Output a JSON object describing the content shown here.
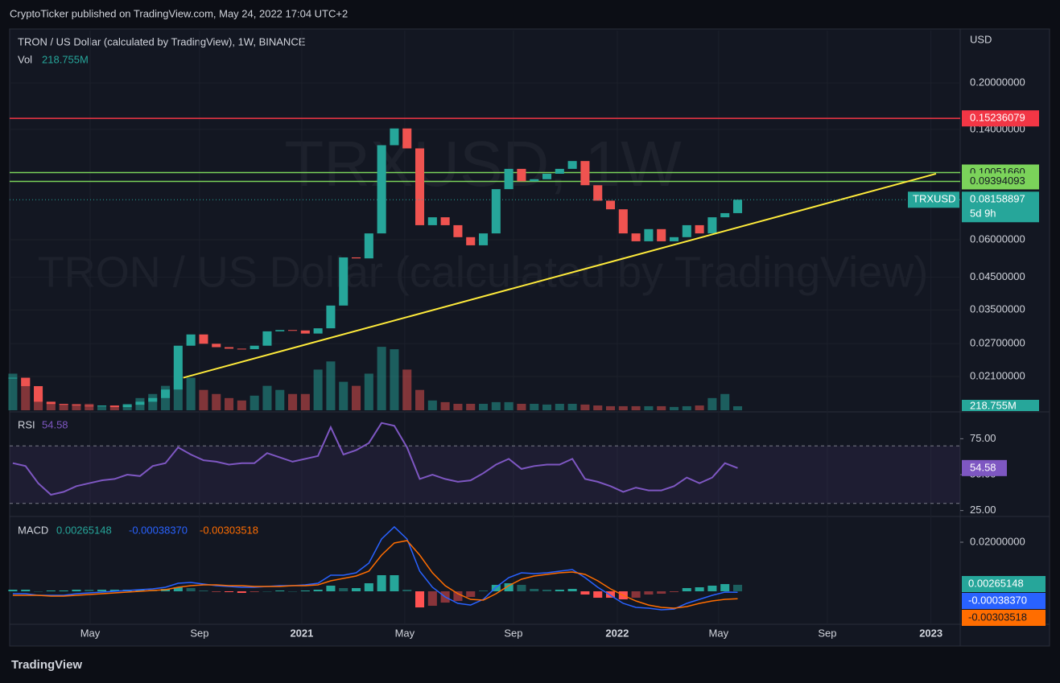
{
  "chart_data": {
    "type": "candlestick",
    "header": "CryptoTicker published on TradingView.com, May 24, 2022 17:04 UTC+2",
    "title": "TRON / US Dollar (calculated by TradingView), 1W, BINANCE",
    "watermark": [
      "TRXUSD, 1W",
      "TRON / US Dollar (calculated by TradingView)"
    ],
    "currency": "USD",
    "symbol": "TRXUSD",
    "countdown": "5d 9h",
    "brand": "TradingView",
    "log_scale": true,
    "xlim": [
      -0.25,
      74.5
    ],
    "xticks": [
      {
        "value": 6.08,
        "label": "May"
      },
      {
        "value": 14.68,
        "label": "Sep"
      },
      {
        "value": 22.72,
        "label": "2021"
      },
      {
        "value": 30.82,
        "label": "May"
      },
      {
        "value": 39.37,
        "label": "Sep"
      },
      {
        "value": 47.53,
        "label": "2022"
      },
      {
        "value": 55.5,
        "label": "May"
      },
      {
        "value": 64.05,
        "label": "Sep"
      },
      {
        "value": 72.2,
        "label": "2023"
      }
    ],
    "ylim": [
      0.0162,
      0.299
    ],
    "yticks": [
      {
        "value": 0.2,
        "label": "0.20000000"
      },
      {
        "value": 0.14,
        "label": "0.14000000"
      },
      {
        "value": 0.06,
        "label": "0.06000000"
      },
      {
        "value": 0.045,
        "label": "0.04500000"
      },
      {
        "value": 0.035,
        "label": "0.03500000"
      },
      {
        "value": 0.027,
        "label": "0.02700000"
      },
      {
        "value": 0.021,
        "label": "0.02100000"
      }
    ],
    "series": [
      {
        "name": "TRXUSD",
        "up_color": "#26a69a",
        "down_color": "#ef5350",
        "values": [
          0.0208,
          0.0195,
          0.0173,
          0.017,
          0.0169,
          0.0168,
          0.0167,
          0.0168,
          0.0166,
          0.0169,
          0.0173,
          0.0178,
          0.019,
          0.0266,
          0.029,
          0.027,
          0.0263,
          0.026,
          0.0259,
          0.0266,
          0.0297,
          0.03,
          0.0299,
          0.0292,
          0.0304,
          0.0362,
          0.0524,
          0.052,
          0.063,
          0.124,
          0.141,
          0.121,
          0.0671,
          0.0713,
          0.0671,
          0.0612,
          0.0575,
          0.063,
          0.0885,
          0.1034,
          0.094,
          0.0955,
          0.0996,
          0.1034,
          0.1098,
          0.0912,
          0.081,
          0.0758,
          0.063,
          0.0593,
          0.0651,
          0.0593,
          0.0612,
          0.0671,
          0.063,
          0.0713,
          0.0736,
          0.08158897
        ]
      }
    ],
    "volume": {
      "name": "Vol",
      "color_up": "#26a69a",
      "color_down": "#ef5350",
      "lim": [
        0,
        6000
      ],
      "last_label": "218.755M",
      "values": [
        1980,
        1760,
        880,
        440,
        350,
        350,
        350,
        260,
        260,
        350,
        660,
        880,
        1320,
        2200,
        1760,
        1100,
        880,
        660,
        530,
        790,
        1320,
        1100,
        880,
        880,
        2200,
        2640,
        1540,
        1320,
        1980,
        3430,
        3300,
        2200,
        1100,
        530,
        440,
        350,
        350,
        350,
        440,
        440,
        350,
        350,
        310,
        350,
        350,
        310,
        260,
        220,
        220,
        220,
        220,
        220,
        180,
        220,
        260,
        660,
        880,
        218.755
      ]
    },
    "hlines": [
      {
        "value": 0.15236079,
        "label": "0.15236079",
        "color": "#f23645"
      },
      {
        "value": 0.1005166,
        "label": "0.10051660",
        "color": "#7bd35a"
      },
      {
        "value": 0.09394093,
        "label": "0.09394093",
        "color": "#7bd35a"
      }
    ],
    "trendline": {
      "color": "#ffeb3b",
      "x": [
        13.4,
        72.6
      ],
      "values": [
        0.0208,
        0.0996
      ]
    },
    "rsi": {
      "name": "RSI",
      "color": "#7e57c2",
      "ylim": [
        22,
        92
      ],
      "band": [
        30,
        70
      ],
      "yticks": [
        {
          "value": 75,
          "label": "75.00"
        },
        {
          "value": 50,
          "label": "50.00"
        },
        {
          "value": 25,
          "label": "25.00"
        }
      ],
      "values": [
        58,
        56,
        44,
        36,
        38,
        42,
        44,
        46,
        47,
        50,
        49,
        56,
        58,
        69,
        64,
        60,
        59,
        57,
        58,
        58,
        65,
        62,
        59,
        61,
        63,
        83,
        64,
        67,
        72,
        86,
        84,
        69,
        47,
        50,
        47,
        45,
        46,
        51,
        57,
        61,
        54,
        56,
        57,
        57,
        61,
        47,
        45,
        42,
        38,
        41,
        39,
        39,
        42,
        48,
        44,
        48,
        58,
        54.58
      ]
    },
    "macd": {
      "name": "MACD",
      "ylim": [
        -0.0131,
        0.0295
      ],
      "yticks": [
        {
          "value": 0.02,
          "label": "0.02000000"
        }
      ],
      "histogram": {
        "label": "0.00265148",
        "up_color": "#26a69a",
        "down_color": "#ff5252",
        "values": [
          0.00066,
          0.00066,
          0,
          0.00033,
          0.00033,
          0.00066,
          0.00065,
          0.00065,
          0.00066,
          0.00066,
          0.00066,
          0.00065,
          0.00098,
          0.00164,
          0.00131,
          0.00033,
          -0.00032,
          -0.00033,
          -0.00066,
          -0.00033,
          0,
          0.00033,
          0,
          0.00032,
          0.00066,
          0.0023,
          0.00131,
          0.00131,
          0.00328,
          0.00656,
          0.00656,
          0.00066,
          -0.00656,
          -0.0059,
          -0.0046,
          -0.00394,
          -0.0023,
          0.00033,
          0.00262,
          0.00328,
          0.00262,
          0.00099,
          0.00065,
          0.00066,
          0.00099,
          -0.00131,
          -0.00262,
          -0.00262,
          -0.00328,
          -0.00262,
          -0.00131,
          -0.00098,
          -0.00033,
          0.00131,
          0.00164,
          0.0023,
          0.00295,
          0.00265148
        ]
      },
      "macd": {
        "label": "-0.00038370",
        "color": "#2962ff",
        "values": [
          -0.00098,
          -0.00098,
          -0.00164,
          -0.00164,
          -0.00164,
          -0.00098,
          -0.00066,
          -0.00033,
          0,
          0.00033,
          0.00066,
          0.00098,
          0.00164,
          0.00328,
          0.00361,
          0.00295,
          0.0023,
          0.00197,
          0.00164,
          0.00164,
          0.00197,
          0.0023,
          0.0023,
          0.00262,
          0.00328,
          0.00656,
          0.00656,
          0.00754,
          0.01148,
          0.02132,
          0.02624,
          0.02132,
          0.0082,
          0.00164,
          -0.0023,
          -0.00492,
          -0.00558,
          -0.00328,
          0.00164,
          0.00558,
          0.00754,
          0.00722,
          0.00754,
          0.0082,
          0.00886,
          0.00558,
          0.00164,
          -0.00164,
          -0.00492,
          -0.00656,
          -0.00689,
          -0.00754,
          -0.00722,
          -0.00492,
          -0.00328,
          -0.00164,
          -0.00033,
          -0.0003837
        ]
      },
      "signal": {
        "label": "-0.00303518",
        "color": "#ff6d00",
        "values": [
          -0.00164,
          -0.00164,
          -0.00164,
          -0.00197,
          -0.00197,
          -0.00164,
          -0.00131,
          -0.00098,
          -0.00066,
          -0.00033,
          0,
          0.00033,
          0.00066,
          0.00164,
          0.0023,
          0.00262,
          0.00262,
          0.0023,
          0.0023,
          0.00197,
          0.00197,
          0.00197,
          0.0023,
          0.0023,
          0.00262,
          0.00426,
          0.00525,
          0.00623,
          0.0082,
          0.01476,
          0.01968,
          0.02066,
          0.01476,
          0.00754,
          0.0023,
          -0.00098,
          -0.00328,
          -0.00361,
          -0.00098,
          0.0023,
          0.00492,
          0.00623,
          0.00689,
          0.00754,
          0.00787,
          0.00689,
          0.00426,
          0.00098,
          -0.00164,
          -0.00394,
          -0.00558,
          -0.00656,
          -0.00689,
          -0.00623,
          -0.00492,
          -0.00394,
          -0.00328,
          -0.00303518
        ]
      }
    }
  }
}
